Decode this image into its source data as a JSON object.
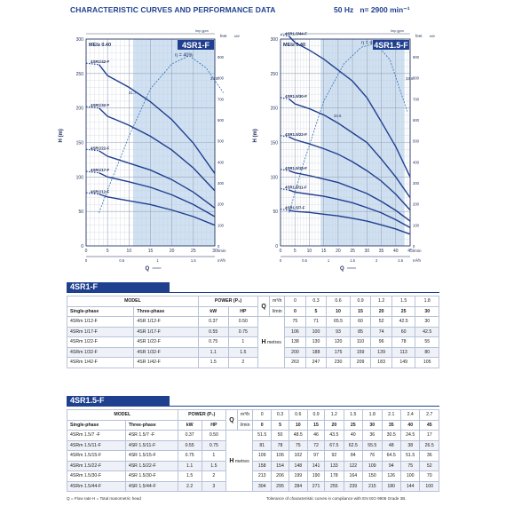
{
  "header": {
    "title": "CHARACTERISTIC CURVES AND PERFORMANCE DATA",
    "freq": "50 Hz",
    "speed": "n= 2900 min⁻¹"
  },
  "charts": [
    {
      "label": "4SR1-F",
      "mei": "MEI≥ 0.40",
      "eta_label": "η = 40%",
      "flow_max": 30,
      "curves": [
        {
          "name": "4SRm 1/42-F",
          "pts": [
            [
              3,
              263
            ],
            [
              5,
              247
            ],
            [
              10,
              230
            ],
            [
              15,
              209
            ],
            [
              20,
              183
            ],
            [
              25,
              149
            ],
            [
              30,
              105
            ]
          ]
        },
        {
          "name": "4SRm 1/32-F",
          "pts": [
            [
              3,
              200
            ],
            [
              5,
              188
            ],
            [
              10,
              175
            ],
            [
              15,
              159
            ],
            [
              20,
              139
            ],
            [
              25,
              113
            ],
            [
              30,
              80
            ]
          ]
        },
        {
          "name": "4SRm 1/22-F",
          "pts": [
            [
              3,
              138
            ],
            [
              5,
              130
            ],
            [
              10,
              120
            ],
            [
              15,
              110
            ],
            [
              20,
              96
            ],
            [
              25,
              78
            ],
            [
              30,
              55
            ]
          ]
        },
        {
          "name": "4SRm 1/17-F",
          "pts": [
            [
              3,
              106
            ],
            [
              5,
              100
            ],
            [
              10,
              93
            ],
            [
              15,
              85
            ],
            [
              20,
              74
            ],
            [
              25,
              60
            ],
            [
              30,
              42.5
            ]
          ]
        },
        {
          "name": "4SRm 1/12-F",
          "pts": [
            [
              3,
              75
            ],
            [
              5,
              71
            ],
            [
              10,
              65.5
            ],
            [
              15,
              60
            ],
            [
              20,
              52
            ],
            [
              25,
              42.5
            ],
            [
              30,
              30
            ]
          ]
        }
      ],
      "eta": [
        [
          3,
          160
        ],
        [
          5,
          270
        ],
        [
          10,
          530
        ],
        [
          15,
          760
        ],
        [
          20,
          880
        ],
        [
          24,
          920
        ],
        [
          28,
          860
        ],
        [
          32,
          740
        ]
      ],
      "eta_marks": [
        "31.7",
        "34.5"
      ]
    },
    {
      "label": "4SR1.5-F",
      "mei": "MEI≥ 0.40",
      "eta_label": "η = 48%",
      "flow_max": 45,
      "curves": [
        {
          "name": "4SRm 1.5/44-F",
          "pts": [
            [
              3,
              304
            ],
            [
              5,
              295
            ],
            [
              10,
              284
            ],
            [
              15,
              271
            ],
            [
              20,
              255
            ],
            [
              25,
              239
            ],
            [
              30,
              215
            ],
            [
              35,
              180
            ],
            [
              40,
              144
            ],
            [
              45,
              100
            ]
          ]
        },
        {
          "name": "4SRm 1.5/30-F",
          "pts": [
            [
              3,
              213
            ],
            [
              5,
              206
            ],
            [
              10,
              199
            ],
            [
              15,
              190
            ],
            [
              20,
              178
            ],
            [
              25,
              164
            ],
            [
              30,
              150
            ],
            [
              35,
              126
            ],
            [
              40,
              100
            ],
            [
              45,
              70
            ]
          ]
        },
        {
          "name": "4SRm 1.5/22-F",
          "pts": [
            [
              3,
              158
            ],
            [
              5,
              154
            ],
            [
              10,
              148
            ],
            [
              15,
              141
            ],
            [
              20,
              133
            ],
            [
              25,
              122
            ],
            [
              30,
              109
            ],
            [
              35,
              94
            ],
            [
              40,
              75
            ],
            [
              45,
              52
            ]
          ]
        },
        {
          "name": "4SRm 1.5/15-F",
          "pts": [
            [
              3,
              109
            ],
            [
              5,
              106
            ],
            [
              10,
              102
            ],
            [
              15,
              97
            ],
            [
              20,
              92
            ],
            [
              25,
              84
            ],
            [
              30,
              76
            ],
            [
              35,
              64.5
            ],
            [
              40,
              51.5
            ],
            [
              45,
              36
            ]
          ]
        },
        {
          "name": "4SRm 1.5/11-F",
          "pts": [
            [
              3,
              81
            ],
            [
              5,
              78
            ],
            [
              10,
              75
            ],
            [
              15,
              72
            ],
            [
              20,
              67.5
            ],
            [
              25,
              62.5
            ],
            [
              30,
              55.5
            ],
            [
              35,
              48
            ],
            [
              40,
              38
            ],
            [
              45,
              26.5
            ]
          ]
        },
        {
          "name": "4SRm 1.5/7-F",
          "pts": [
            [
              3,
              51.5
            ],
            [
              5,
              50
            ],
            [
              10,
              48.5
            ],
            [
              15,
              46
            ],
            [
              20,
              43.5
            ],
            [
              25,
              40
            ],
            [
              30,
              36
            ],
            [
              35,
              30.5
            ],
            [
              40,
              24.5
            ],
            [
              45,
              17
            ]
          ]
        }
      ],
      "eta": [
        [
          3,
          160
        ],
        [
          8,
          400
        ],
        [
          15,
          700
        ],
        [
          22,
          880
        ],
        [
          28,
          960
        ],
        [
          33,
          980
        ],
        [
          38,
          900
        ],
        [
          44,
          650
        ]
      ],
      "eta_marks": [
        "34.5",
        "34.6"
      ]
    }
  ],
  "axis": {
    "h_label": "H (m)",
    "q_label": "Q",
    "lmin": "l/min",
    "m3h": "m³/h",
    "imp": "Imp gpm",
    "feet": "feet",
    "kw": "kW",
    "hp": "HP"
  },
  "tables": [
    {
      "title": "4SR1-F",
      "m3h": [
        "0",
        "0.3",
        "0.6",
        "0.9",
        "1.2",
        "1.5",
        "1.8"
      ],
      "lmin": [
        "0",
        "5",
        "10",
        "15",
        "20",
        "25",
        "30"
      ],
      "rows": [
        {
          "sp": "4SRm 1/12-F",
          "tp": "4SR 1/12-F",
          "kw": "0.37",
          "hp": "0.50",
          "h": [
            "75",
            "71",
            "65.5",
            "60",
            "52",
            "42.5",
            "30"
          ]
        },
        {
          "sp": "4SRm 1/17-F",
          "tp": "4SR 1/17-F",
          "kw": "0.55",
          "hp": "0.75",
          "h": [
            "106",
            "100",
            "93",
            "85",
            "74",
            "60",
            "42.5"
          ]
        },
        {
          "sp": "4SRm 1/22-F",
          "tp": "4SR 1/22-F",
          "kw": "0.75",
          "hp": "1",
          "h": [
            "138",
            "130",
            "120",
            "110",
            "96",
            "78",
            "55"
          ]
        },
        {
          "sp": "4SRm 1/32-F",
          "tp": "4SR 1/32-F",
          "kw": "1.1",
          "hp": "1.5",
          "h": [
            "200",
            "188",
            "175",
            "159",
            "139",
            "113",
            "80"
          ]
        },
        {
          "sp": "4SRm 1/42-F",
          "tp": "4SR 1/42-F",
          "kw": "1.5",
          "hp": "2",
          "h": [
            "263",
            "247",
            "230",
            "209",
            "183",
            "149",
            "105"
          ]
        }
      ]
    },
    {
      "title": "4SR1.5-F",
      "m3h": [
        "0",
        "0.3",
        "0.6",
        "0.9",
        "1.2",
        "1.5",
        "1.8",
        "2.1",
        "2.4",
        "2.7"
      ],
      "lmin": [
        "0",
        "5",
        "10",
        "15",
        "20",
        "25",
        "30",
        "35",
        "40",
        "45"
      ],
      "rows": [
        {
          "sp": "4SRm 1.5/7  -F",
          "tp": "4SR 1.5/7  -F",
          "kw": "0.37",
          "hp": "0.50",
          "h": [
            "51.5",
            "50",
            "48.5",
            "46",
            "43.5",
            "40",
            "36",
            "30.5",
            "24.5",
            "17"
          ]
        },
        {
          "sp": "4SRm 1.5/11-F",
          "tp": "4SR 1.5/11-F",
          "kw": "0.55",
          "hp": "0.75",
          "h": [
            "81",
            "78",
            "75",
            "72",
            "67.5",
            "62.5",
            "55.5",
            "48",
            "38",
            "26.5"
          ]
        },
        {
          "sp": "4SRm 1.5/15-F",
          "tp": "4SR 1.5/15-F",
          "kw": "0.75",
          "hp": "1",
          "h": [
            "109",
            "106",
            "102",
            "97",
            "92",
            "84",
            "76",
            "64.5",
            "51.5",
            "36"
          ]
        },
        {
          "sp": "4SRm 1.5/22-F",
          "tp": "4SR 1.5/22-F",
          "kw": "1.1",
          "hp": "1.5",
          "h": [
            "158",
            "154",
            "148",
            "141",
            "133",
            "122",
            "109",
            "94",
            "75",
            "52"
          ]
        },
        {
          "sp": "4SRm 1.5/30-F",
          "tp": "4SR 1.5/30-F",
          "kw": "1.5",
          "hp": "2",
          "h": [
            "213",
            "206",
            "199",
            "190",
            "178",
            "164",
            "150",
            "126",
            "100",
            "70"
          ]
        },
        {
          "sp": "4SRm 1.5/44-F",
          "tp": "4SR 1.5/44-F",
          "kw": "2.2",
          "hp": "3",
          "h": [
            "304",
            "295",
            "284",
            "271",
            "255",
            "239",
            "215",
            "180",
            "144",
            "100"
          ]
        }
      ]
    }
  ],
  "table_head": {
    "model": "MODEL",
    "power": "POWER (P₂)",
    "single": "Single-phase",
    "three": "Three-phase",
    "kw": "kW",
    "hp": "HP",
    "q": "Q",
    "h": "H",
    "metres": "metres",
    "m3h": "m³/h",
    "lmin": "l/min"
  },
  "footer": {
    "left": "Q = Flow rate   H = Total manometric head",
    "right": "Tolerance of characteristic curves in compliance with EN ISO 9906 Grade 3B."
  }
}
